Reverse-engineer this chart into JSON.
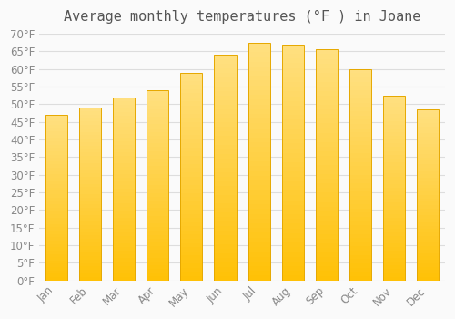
{
  "title": "Average monthly temperatures (°F ) in Joane",
  "months": [
    "Jan",
    "Feb",
    "Mar",
    "Apr",
    "May",
    "Jun",
    "Jul",
    "Aug",
    "Sep",
    "Oct",
    "Nov",
    "Dec"
  ],
  "values": [
    47.0,
    49.0,
    52.0,
    54.0,
    59.0,
    64.0,
    67.5,
    67.0,
    65.5,
    60.0,
    52.5,
    48.5
  ],
  "bar_color_bottom": "#FFC107",
  "bar_color_top": "#FFD54F",
  "bar_edge_color": "#E6A800",
  "ylim": [
    0,
    70
  ],
  "ytick_step": 5,
  "background_color": "#FAFAFA",
  "grid_color": "#DDDDDD",
  "title_fontsize": 11,
  "tick_fontsize": 8.5
}
